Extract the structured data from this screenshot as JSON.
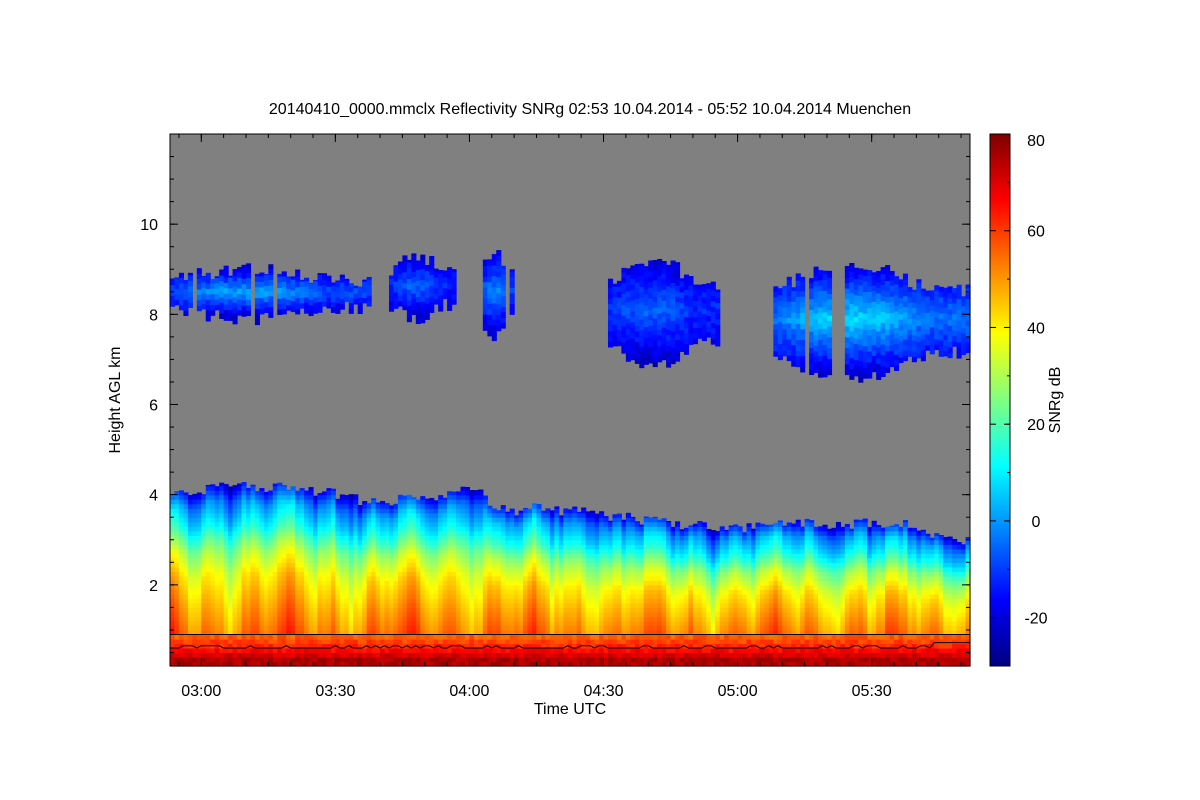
{
  "chart_data": {
    "type": "heatmap",
    "title": "20140410_0000.mmclx Reflectivity SNRg   02:53 10.04.2014 - 05:52 10.04.2014 Muenchen",
    "xlabel": "Time UTC",
    "ylabel": "Height AGL km",
    "colorbar_label": "SNRg dB",
    "xlim_minutes_utc": [
      173,
      352
    ],
    "ylim_km": [
      0.2,
      12.0
    ],
    "x_ticks": [
      {
        "minute": 180,
        "label": "03:00"
      },
      {
        "minute": 210,
        "label": "03:30"
      },
      {
        "minute": 240,
        "label": "04:00"
      },
      {
        "minute": 270,
        "label": "04:30"
      },
      {
        "minute": 300,
        "label": "05:00"
      },
      {
        "minute": 330,
        "label": "05:30"
      }
    ],
    "y_ticks": [
      {
        "value": 2,
        "label": "2"
      },
      {
        "value": 4,
        "label": "4"
      },
      {
        "value": 6,
        "label": "6"
      },
      {
        "value": 8,
        "label": "8"
      },
      {
        "value": 10,
        "label": "10"
      }
    ],
    "colorbar_range_db": [
      -30,
      80
    ],
    "colorbar_ticks": [
      {
        "value": -20,
        "label": "-20"
      },
      {
        "value": 0,
        "label": "0"
      },
      {
        "value": 20,
        "label": "20"
      },
      {
        "value": 40,
        "label": "40"
      },
      {
        "value": 60,
        "label": "60"
      },
      {
        "value": 80,
        "label": "80"
      }
    ],
    "background_color": "#808080",
    "colormap": [
      "#00007f",
      "#0000ff",
      "#0080ff",
      "#00ffff",
      "#80ff80",
      "#ffff00",
      "#ff8000",
      "#ff0000",
      "#7f0000"
    ],
    "lower_layer": {
      "top_km": [
        [
          173,
          4.1
        ],
        [
          178,
          4.0
        ],
        [
          183,
          4.15
        ],
        [
          188,
          4.2
        ],
        [
          193,
          4.15
        ],
        [
          198,
          4.25
        ],
        [
          203,
          4.05
        ],
        [
          208,
          4.05
        ],
        [
          213,
          3.95
        ],
        [
          218,
          3.8
        ],
        [
          223,
          3.85
        ],
        [
          228,
          3.95
        ],
        [
          233,
          3.95
        ],
        [
          238,
          4.05
        ],
        [
          241,
          4.15
        ],
        [
          246,
          3.75
        ],
        [
          251,
          3.65
        ],
        [
          256,
          3.7
        ],
        [
          261,
          3.65
        ],
        [
          266,
          3.6
        ],
        [
          271,
          3.55
        ],
        [
          276,
          3.5
        ],
        [
          281,
          3.4
        ],
        [
          286,
          3.35
        ],
        [
          291,
          3.35
        ],
        [
          296,
          3.3
        ],
        [
          301,
          3.25
        ],
        [
          306,
          3.3
        ],
        [
          311,
          3.35
        ],
        [
          316,
          3.35
        ],
        [
          321,
          3.3
        ],
        [
          326,
          3.35
        ],
        [
          331,
          3.35
        ],
        [
          336,
          3.4
        ],
        [
          339,
          3.3
        ],
        [
          343,
          3.05
        ],
        [
          347,
          3.0
        ],
        [
          352,
          2.95
        ]
      ],
      "snr_profile_db": [
        [
          0.3,
          75
        ],
        [
          0.6,
          62
        ],
        [
          0.9,
          54
        ],
        [
          1.5,
          48
        ],
        [
          2.2,
          40
        ],
        [
          2.8,
          28
        ],
        [
          3.3,
          12
        ],
        [
          3.8,
          0
        ],
        [
          4.2,
          -18
        ]
      ]
    },
    "ceilometer_line_km": 0.9,
    "cloud_base_line_km": 0.6,
    "upper_clouds": [
      {
        "t0": 173,
        "t1": 218,
        "top_km": 9.0,
        "base_km": 7.9,
        "peak_snr_db": 2
      },
      {
        "t0": 222,
        "t1": 237,
        "top_km": 9.3,
        "base_km": 7.9,
        "peak_snr_db": -5
      },
      {
        "t0": 242,
        "t1": 250,
        "top_km": 9.4,
        "base_km": 7.5,
        "peak_snr_db": -2
      },
      {
        "t0": 271,
        "t1": 296,
        "top_km": 9.2,
        "base_km": 6.9,
        "peak_snr_db": -5
      },
      {
        "t0": 308,
        "t1": 352,
        "top_km": 9.1,
        "base_km": 6.6,
        "peak_snr_db": 8
      }
    ]
  }
}
